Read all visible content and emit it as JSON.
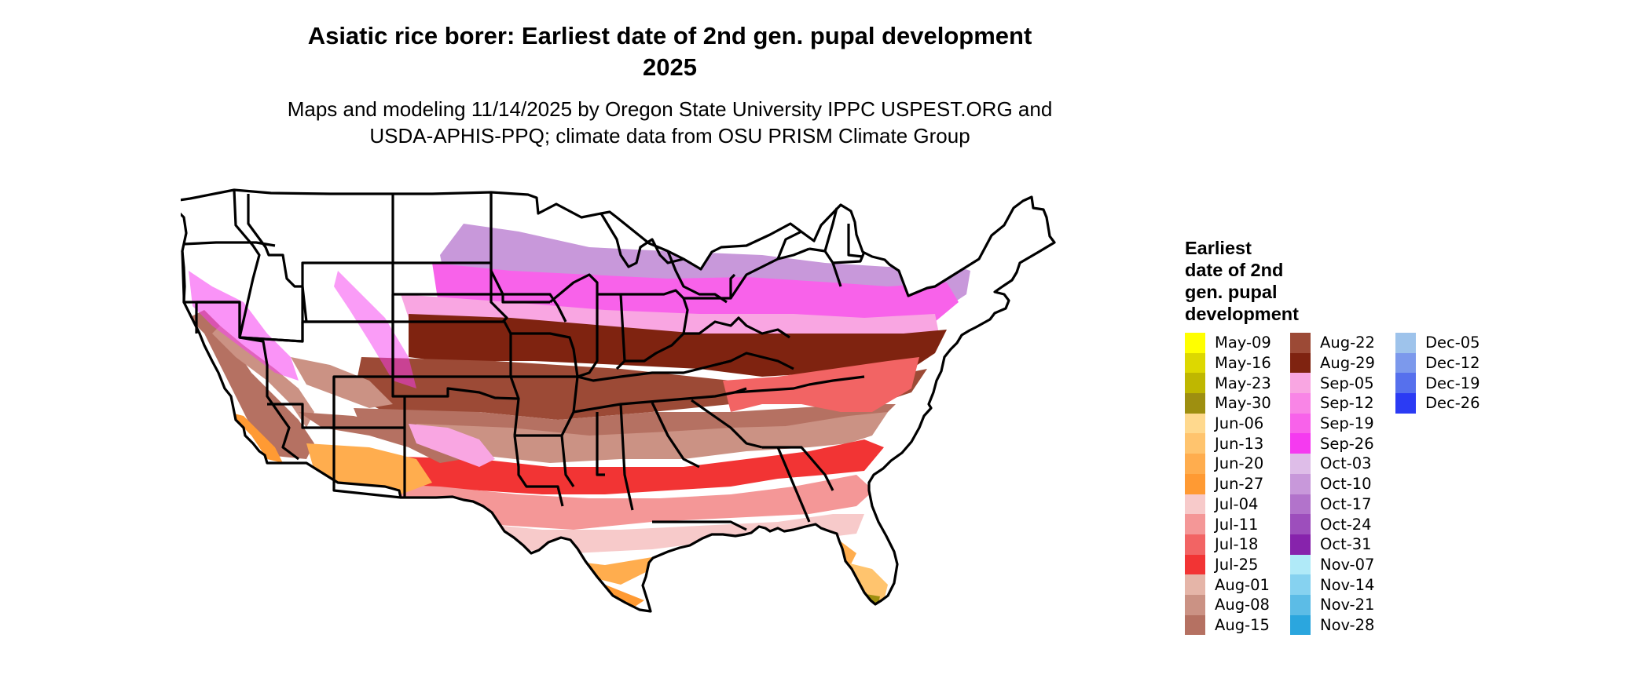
{
  "title_line1": "Asiatic rice borer: Earliest date of 2nd gen. pupal development",
  "title_line2": "2025",
  "subtitle_line1": "Maps and modeling 11/14/2025 by Oregon State University IPPC USPEST.ORG and",
  "subtitle_line2": "USDA-APHIS-PPQ; climate data from OSU PRISM Climate Group",
  "legend": {
    "title_lines": [
      "Earliest",
      "date of 2nd",
      "gen. pupal",
      "development"
    ],
    "columns": [
      [
        {
          "label": "May-09",
          "color": "#FFFF00"
        },
        {
          "label": "May-16",
          "color": "#DDD800"
        },
        {
          "label": "May-23",
          "color": "#BFB700"
        },
        {
          "label": "May-30",
          "color": "#9E8F10"
        },
        {
          "label": "Jun-06",
          "color": "#FFD98E"
        },
        {
          "label": "Jun-13",
          "color": "#FFC46E"
        },
        {
          "label": "Jun-20",
          "color": "#FFAD4E"
        },
        {
          "label": "Jun-27",
          "color": "#FF9A33"
        },
        {
          "label": "Jul-04",
          "color": "#F7CACA"
        },
        {
          "label": "Jul-11",
          "color": "#F49797"
        },
        {
          "label": "Jul-18",
          "color": "#F26464"
        },
        {
          "label": "Jul-25",
          "color": "#F23434"
        },
        {
          "label": "Aug-01",
          "color": "#E5B5A8"
        },
        {
          "label": "Aug-08",
          "color": "#CB9284"
        },
        {
          "label": "Aug-15",
          "color": "#B57162"
        }
      ],
      [
        {
          "label": "Aug-22",
          "color": "#9C4A36"
        },
        {
          "label": "Aug-29",
          "color": "#7F2310"
        },
        {
          "label": "Sep-05",
          "color": "#F9A6E2"
        },
        {
          "label": "Sep-12",
          "color": "#F985E6"
        },
        {
          "label": "Sep-19",
          "color": "#F862EA"
        },
        {
          "label": "Sep-26",
          "color": "#F53AF0"
        },
        {
          "label": "Oct-03",
          "color": "#DEBDE8"
        },
        {
          "label": "Oct-10",
          "color": "#C898DA"
        },
        {
          "label": "Oct-17",
          "color": "#B273CB"
        },
        {
          "label": "Oct-24",
          "color": "#9D4EBC"
        },
        {
          "label": "Oct-31",
          "color": "#8723AC"
        },
        {
          "label": "Nov-07",
          "color": "#B0EAF8"
        },
        {
          "label": "Nov-14",
          "color": "#86D2F0"
        },
        {
          "label": "Nov-21",
          "color": "#5CBCE6"
        },
        {
          "label": "Nov-28",
          "color": "#2BA6DE"
        }
      ],
      [
        {
          "label": "Dec-05",
          "color": "#9EC3EB"
        },
        {
          "label": "Dec-12",
          "color": "#7C99EC"
        },
        {
          "label": "Dec-19",
          "color": "#5670ED"
        },
        {
          "label": "Dec-26",
          "color": "#2B3BF4"
        }
      ]
    ]
  }
}
